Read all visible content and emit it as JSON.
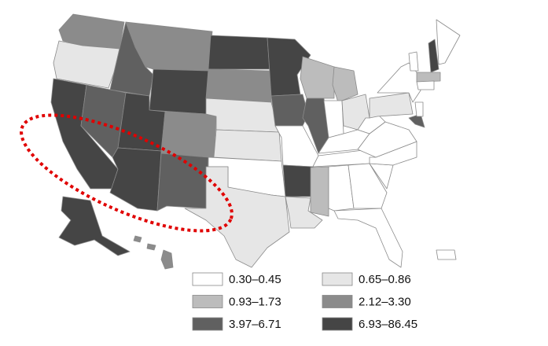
{
  "legend": {
    "items": [
      {
        "label": "0.30–0.45",
        "color": "#ffffff"
      },
      {
        "label": "0.65–0.86",
        "color": "#e6e6e6"
      },
      {
        "label": "0.93–1.73",
        "color": "#bcbcbc"
      },
      {
        "label": "2.12–3.30",
        "color": "#8b8b8b"
      },
      {
        "label": "3.97–6.71",
        "color": "#606060"
      },
      {
        "label": "6.93–86.45",
        "color": "#454545"
      }
    ]
  }
}
